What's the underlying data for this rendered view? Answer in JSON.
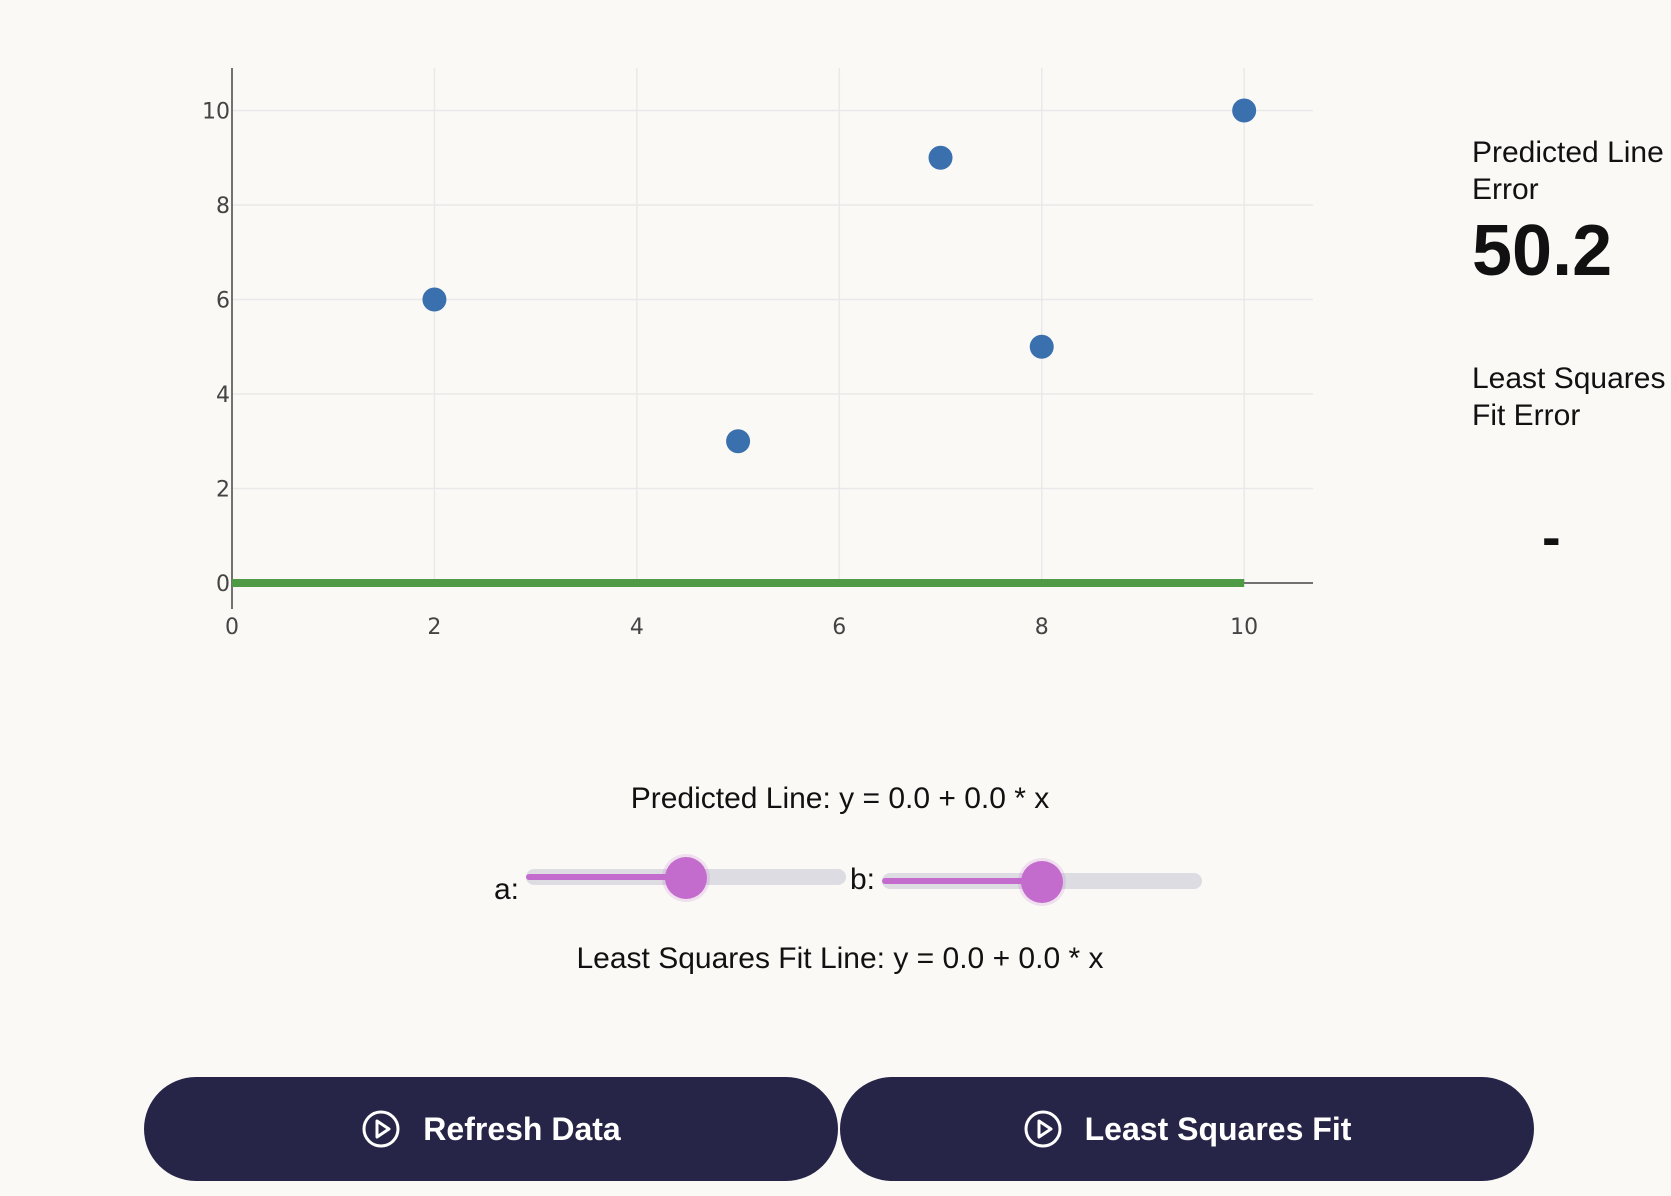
{
  "chart_data": {
    "type": "scatter",
    "points": [
      {
        "x": 2,
        "y": 6
      },
      {
        "x": 5,
        "y": 3
      },
      {
        "x": 7,
        "y": 9
      },
      {
        "x": 8,
        "y": 5
      },
      {
        "x": 10,
        "y": 10
      }
    ],
    "predicted_line": {
      "intercept": 0.0,
      "slope": 0.0,
      "x_range": [
        0,
        10
      ]
    },
    "xticks": [
      0,
      2,
      4,
      6,
      8,
      10
    ],
    "yticks": [
      0,
      2,
      4,
      6,
      8,
      10
    ],
    "xlim": [
      0,
      10.68
    ],
    "ylim": [
      -0.55,
      10.9
    ],
    "grid": true,
    "colors": {
      "points": "#3a70ad",
      "line": "#4e9a45",
      "grid": "#e9e9e9"
    }
  },
  "errors": {
    "predicted_label": "Predicted Line Error",
    "predicted_value": "50.2",
    "lsf_label": "Least Squares Fit Error",
    "lsf_value": "-"
  },
  "equations": {
    "predicted": "Predicted Line: y = 0.0 + 0.0 * x",
    "least_squares": "Least Squares Fit Line: y = 0.0 + 0.0 * x"
  },
  "sliders": {
    "a": {
      "label": "a:",
      "fraction": 0.5
    },
    "b": {
      "label": "b:",
      "fraction": 0.5
    }
  },
  "buttons": {
    "refresh": "Refresh Data",
    "fit": "Least Squares Fit"
  },
  "icons": {
    "button_icon": "play-circle-icon"
  },
  "colors": {
    "accent": "#c46ccd",
    "button": "#262547"
  }
}
